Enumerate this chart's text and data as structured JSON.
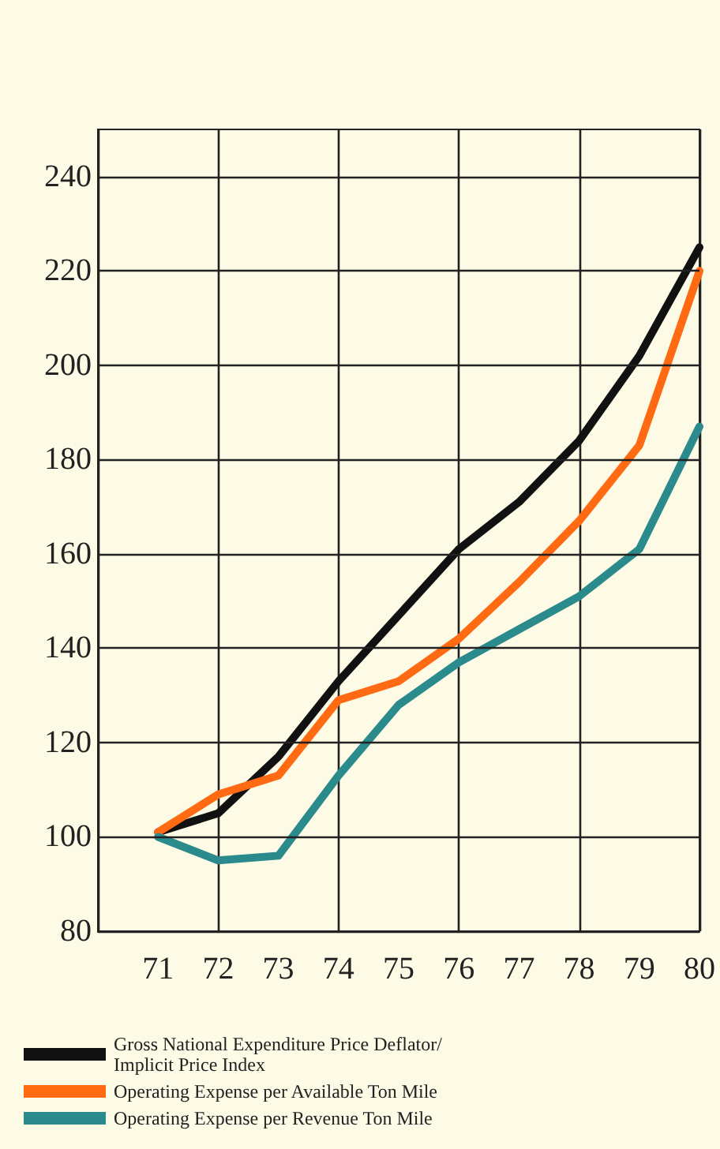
{
  "chart_data": {
    "type": "line",
    "x": [
      71,
      72,
      73,
      74,
      75,
      76,
      77,
      78,
      79,
      80
    ],
    "series": [
      {
        "name": "Gross National Expenditure Price Deflator/\nImplicit Price Index",
        "color": "#111111",
        "values": [
          101,
          105,
          117,
          133,
          147,
          161,
          171,
          184,
          202,
          225
        ]
      },
      {
        "name": "Operating Expense per Available Ton Mile",
        "color": "#ff6a13",
        "values": [
          101,
          109,
          113,
          129,
          133,
          142,
          154,
          167,
          183,
          220
        ]
      },
      {
        "name": "Operating Expense per Revenue Ton Mile",
        "color": "#2a8a8c",
        "values": [
          100,
          95,
          96,
          113,
          128,
          137,
          144,
          151,
          161,
          187
        ]
      }
    ],
    "xlim": [
      70,
      80
    ],
    "xticks": [
      71,
      72,
      73,
      74,
      75,
      76,
      77,
      78,
      79,
      80
    ],
    "ylim": [
      80,
      250
    ],
    "yticks": [
      80,
      100,
      120,
      140,
      160,
      180,
      200,
      220,
      240
    ],
    "grid": true,
    "legend": "bottom",
    "marker": "none",
    "line_style": "solid"
  }
}
